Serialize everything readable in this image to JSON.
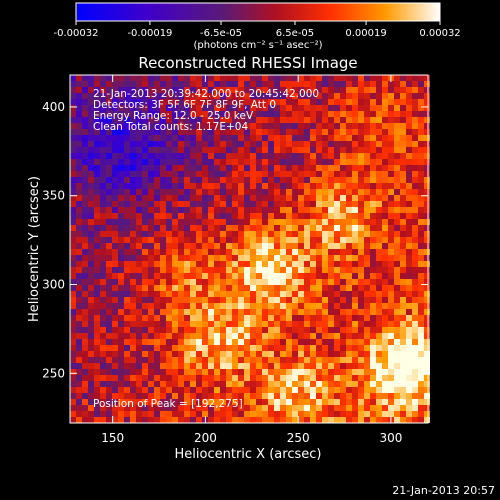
{
  "chart_data": {
    "type": "heatmap",
    "title": "Reconstructed RHESSI Image",
    "xlabel": "Heliocentric X (arcsec)",
    "ylabel": "Heliocentric Y (arcsec)",
    "xlim": [
      127,
      320
    ],
    "ylim": [
      222,
      418
    ],
    "x_ticks": [
      150,
      200,
      250,
      300
    ],
    "y_ticks": [
      250,
      300,
      350,
      400
    ],
    "colorbar": {
      "ticks": [
        "-0.00032",
        "-0.00019",
        "-6.5e-05",
        "6.5e-05",
        "0.00019",
        "0.00032"
      ],
      "tick_values": [
        -0.00032,
        -0.00019,
        -6.5e-05,
        6.5e-05,
        0.00019,
        0.00032
      ],
      "range": [
        -0.00032,
        0.00032
      ],
      "unit_label": "(photons cm⁻² s⁻¹ asec⁻²)"
    },
    "annotations": [
      "21-Jan-2013 20:39:42.000 to 20:45:42.000",
      "Detectors: 3F 5F 6F 7F 8F 9F, Att 0",
      "Energy Range: 12.0 - 25.0 keV",
      "Clean     Total counts: 1.17E+04"
    ],
    "peak_label": "Position of Peak = [192,275]",
    "peak_position": [
      192,
      275
    ],
    "grid": false
  },
  "footer_timestamp": "21-Jan-2013 20:57"
}
